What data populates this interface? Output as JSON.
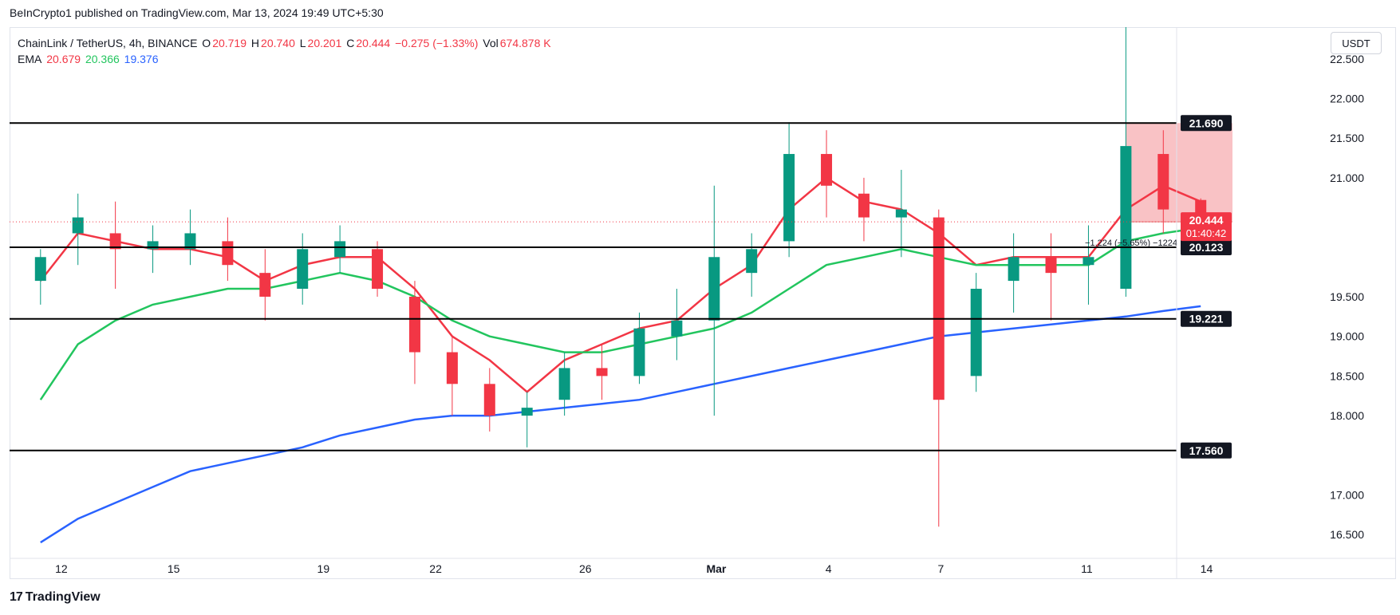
{
  "header": {
    "publisher_line": "BeInCrypto1 published on TradingView.com, Mar 13, 2024 19:49 UTC+5:30"
  },
  "legend": {
    "symbol": "ChainLink / TetherUS, 4h, BINANCE",
    "o_label": "O",
    "o_value": "20.719",
    "h_label": "H",
    "h_value": "20.740",
    "l_label": "L",
    "l_value": "20.201",
    "c_label": "C",
    "c_value": "20.444",
    "change": "−0.275 (−1.33%)",
    "vol_label": "Vol",
    "vol_value": "674.878 K",
    "ema_label": "EMA",
    "ema_values": [
      "20.679",
      "20.366",
      "19.376"
    ]
  },
  "currency_button": "USDT",
  "footer": {
    "brand": "TradingView"
  },
  "colors": {
    "up": "#089981",
    "down": "#f23645",
    "ema_fast": "#f23645",
    "ema_mid": "#22c55e",
    "ema_slow": "#2962ff",
    "level_line": "#000000",
    "range_box": "#f7a8ad"
  },
  "chart_data": {
    "type": "candlestick",
    "title": "ChainLink / TetherUS, 4h, BINANCE",
    "ylim": [
      16.2,
      22.9
    ],
    "y_ticks": [
      "22.500",
      "22.000",
      "21.500",
      "21.000",
      "19.500",
      "19.000",
      "18.500",
      "18.000",
      "17.000",
      "16.500"
    ],
    "x_tick_labels": [
      "12",
      "15",
      "19",
      "22",
      "26",
      "Mar",
      "4",
      "7",
      "11",
      "14"
    ],
    "horizontal_levels": [
      21.69,
      20.123,
      19.221,
      17.56
    ],
    "level_labels": [
      "21.690",
      "20.123",
      "19.221",
      "17.560"
    ],
    "current_price": {
      "value": 20.444,
      "label": "20.444",
      "countdown": "01:40:42"
    },
    "measure_annotation": "−1.224 (−5.65%) −1224",
    "short_position_box": {
      "from": "Mar 11",
      "top": 21.69,
      "bottom": 20.444
    },
    "series": [
      {
        "name": "EMA 20.679",
        "color": "#f23645",
        "x": [
          "Feb 11",
          "Feb 12",
          "Feb 13",
          "Feb 14",
          "Feb 15",
          "Feb 16",
          "Feb 17",
          "Feb 18",
          "Feb 19",
          "Feb 20",
          "Feb 21",
          "Feb 22",
          "Feb 23",
          "Feb 24",
          "Feb 25",
          "Feb 26",
          "Feb 27",
          "Feb 28",
          "Feb 29",
          "Mar 1",
          "Mar 2",
          "Mar 3",
          "Mar 4",
          "Mar 5",
          "Mar 6",
          "Mar 7",
          "Mar 8",
          "Mar 9",
          "Mar 10",
          "Mar 11",
          "Mar 12",
          "Mar 13"
        ],
        "values": [
          19.7,
          20.3,
          20.2,
          20.1,
          20.1,
          20.0,
          19.7,
          19.9,
          20.0,
          20.0,
          19.6,
          19.0,
          18.7,
          18.3,
          18.7,
          18.9,
          19.1,
          19.2,
          19.6,
          19.9,
          20.6,
          21.0,
          20.7,
          20.6,
          20.3,
          19.9,
          20.0,
          20.0,
          20.0,
          20.6,
          20.9,
          20.7
        ]
      },
      {
        "name": "EMA 20.366",
        "color": "#22c55e",
        "x": [
          "Feb 11",
          "Feb 12",
          "Feb 13",
          "Feb 14",
          "Feb 15",
          "Feb 16",
          "Feb 17",
          "Feb 18",
          "Feb 19",
          "Feb 20",
          "Feb 21",
          "Feb 22",
          "Feb 23",
          "Feb 24",
          "Feb 25",
          "Feb 26",
          "Feb 27",
          "Feb 28",
          "Feb 29",
          "Mar 1",
          "Mar 2",
          "Mar 3",
          "Mar 4",
          "Mar 5",
          "Mar 6",
          "Mar 7",
          "Mar 8",
          "Mar 9",
          "Mar 10",
          "Mar 11",
          "Mar 12",
          "Mar 13"
        ],
        "values": [
          18.2,
          18.9,
          19.2,
          19.4,
          19.5,
          19.6,
          19.6,
          19.7,
          19.8,
          19.7,
          19.5,
          19.2,
          19.0,
          18.9,
          18.8,
          18.8,
          18.9,
          19.0,
          19.1,
          19.3,
          19.6,
          19.9,
          20.0,
          20.1,
          20.0,
          19.9,
          19.9,
          19.9,
          19.9,
          20.2,
          20.3,
          20.37
        ]
      },
      {
        "name": "EMA 19.376",
        "color": "#2962ff",
        "x": [
          "Feb 11",
          "Feb 12",
          "Feb 13",
          "Feb 14",
          "Feb 15",
          "Feb 16",
          "Feb 17",
          "Feb 18",
          "Feb 19",
          "Feb 20",
          "Feb 21",
          "Feb 22",
          "Feb 23",
          "Feb 24",
          "Feb 25",
          "Feb 26",
          "Feb 27",
          "Feb 28",
          "Feb 29",
          "Mar 1",
          "Mar 2",
          "Mar 3",
          "Mar 4",
          "Mar 5",
          "Mar 6",
          "Mar 7",
          "Mar 8",
          "Mar 9",
          "Mar 10",
          "Mar 11",
          "Mar 12",
          "Mar 13"
        ],
        "values": [
          16.4,
          16.7,
          16.9,
          17.1,
          17.3,
          17.4,
          17.5,
          17.6,
          17.75,
          17.85,
          17.95,
          18.0,
          18.0,
          18.05,
          18.1,
          18.15,
          18.2,
          18.3,
          18.4,
          18.5,
          18.6,
          18.7,
          18.8,
          18.9,
          19.0,
          19.05,
          19.1,
          19.15,
          19.2,
          19.25,
          19.32,
          19.38
        ]
      }
    ],
    "candles": [
      {
        "x": "Feb 11",
        "o": 19.7,
        "h": 20.1,
        "l": 19.4,
        "c": 20.0
      },
      {
        "x": "Feb 12",
        "o": 20.3,
        "h": 20.8,
        "l": 19.9,
        "c": 20.5
      },
      {
        "x": "Feb 13",
        "o": 20.3,
        "h": 20.7,
        "l": 19.6,
        "c": 20.1
      },
      {
        "x": "Feb 14",
        "o": 20.1,
        "h": 20.4,
        "l": 19.8,
        "c": 20.2
      },
      {
        "x": "Feb 15",
        "o": 20.1,
        "h": 20.6,
        "l": 19.9,
        "c": 20.3
      },
      {
        "x": "Feb 16",
        "o": 20.2,
        "h": 20.5,
        "l": 19.7,
        "c": 19.9
      },
      {
        "x": "Feb 17",
        "o": 19.8,
        "h": 20.1,
        "l": 19.2,
        "c": 19.5
      },
      {
        "x": "Feb 18",
        "o": 19.6,
        "h": 20.3,
        "l": 19.4,
        "c": 20.1
      },
      {
        "x": "Feb 19",
        "o": 20.0,
        "h": 20.4,
        "l": 19.8,
        "c": 20.2
      },
      {
        "x": "Feb 20",
        "o": 20.1,
        "h": 20.2,
        "l": 19.5,
        "c": 19.6
      },
      {
        "x": "Feb 21",
        "o": 19.5,
        "h": 19.7,
        "l": 18.4,
        "c": 18.8
      },
      {
        "x": "Feb 22",
        "o": 18.8,
        "h": 19.0,
        "l": 18.0,
        "c": 18.4
      },
      {
        "x": "Feb 23",
        "o": 18.4,
        "h": 18.6,
        "l": 17.8,
        "c": 18.0
      },
      {
        "x": "Feb 24",
        "o": 18.0,
        "h": 18.3,
        "l": 17.6,
        "c": 18.1
      },
      {
        "x": "Feb 25",
        "o": 18.2,
        "h": 18.8,
        "l": 18.0,
        "c": 18.6
      },
      {
        "x": "Feb 26",
        "o": 18.6,
        "h": 18.9,
        "l": 18.2,
        "c": 18.5
      },
      {
        "x": "Feb 27",
        "o": 18.5,
        "h": 19.3,
        "l": 18.4,
        "c": 19.1
      },
      {
        "x": "Feb 28",
        "o": 19.0,
        "h": 19.6,
        "l": 18.7,
        "c": 19.2
      },
      {
        "x": "Feb 29",
        "o": 19.2,
        "h": 20.9,
        "l": 18.0,
        "c": 20.0
      },
      {
        "x": "Mar 1",
        "o": 19.8,
        "h": 20.3,
        "l": 19.5,
        "c": 20.1
      },
      {
        "x": "Mar 2",
        "o": 20.2,
        "h": 21.7,
        "l": 20.0,
        "c": 21.3
      },
      {
        "x": "Mar 3",
        "o": 21.3,
        "h": 21.6,
        "l": 20.5,
        "c": 20.9
      },
      {
        "x": "Mar 4",
        "o": 20.8,
        "h": 21.0,
        "l": 20.2,
        "c": 20.5
      },
      {
        "x": "Mar 5",
        "o": 20.5,
        "h": 21.1,
        "l": 20.0,
        "c": 20.6
      },
      {
        "x": "Mar 6",
        "o": 20.5,
        "h": 20.6,
        "l": 16.6,
        "c": 18.2
      },
      {
        "x": "Mar 7",
        "o": 18.5,
        "h": 19.8,
        "l": 18.3,
        "c": 19.6
      },
      {
        "x": "Mar 8",
        "o": 19.7,
        "h": 20.3,
        "l": 19.3,
        "c": 20.0
      },
      {
        "x": "Mar 9",
        "o": 20.0,
        "h": 20.3,
        "l": 19.2,
        "c": 19.8
      },
      {
        "x": "Mar 10",
        "o": 19.9,
        "h": 20.4,
        "l": 19.4,
        "c": 20.0
      },
      {
        "x": "Mar 11",
        "o": 19.6,
        "h": 22.9,
        "l": 19.5,
        "c": 21.4
      },
      {
        "x": "Mar 12",
        "o": 21.3,
        "h": 21.6,
        "l": 20.3,
        "c": 20.6
      },
      {
        "x": "Mar 13",
        "o": 20.72,
        "h": 20.74,
        "l": 20.2,
        "c": 20.44
      }
    ]
  }
}
